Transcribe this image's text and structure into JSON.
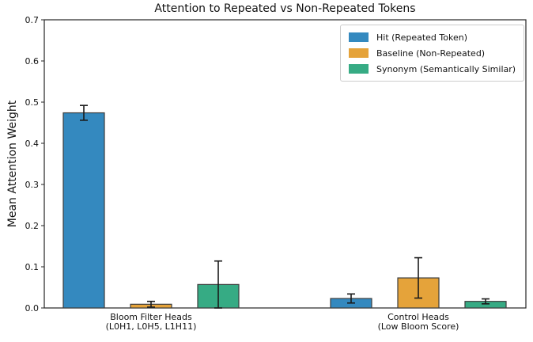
{
  "chart_data": {
    "type": "bar",
    "title": "Attention to Repeated vs Non-Repeated Tokens",
    "ylabel": "Mean Attention Weight",
    "xlabel": "",
    "ylim": [
      0,
      0.7
    ],
    "yticks": [
      0.0,
      0.1,
      0.2,
      0.3,
      0.4,
      0.5,
      0.6,
      0.7
    ],
    "grid": false,
    "legend_position": "upper right",
    "categories": [
      [
        "Bloom Filter Heads",
        "(L0H1, L0H5, L1H11)"
      ],
      [
        "Control Heads",
        "(Low Bloom Score)"
      ]
    ],
    "series": [
      {
        "name": "Hit (Repeated Token)",
        "color": "#3489bf",
        "values": [
          0.474,
          0.023
        ],
        "errors": [
          0.018,
          0.011
        ]
      },
      {
        "name": "Baseline (Non-Repeated)",
        "color": "#e5a33a",
        "values": [
          0.009,
          0.073
        ],
        "errors": [
          0.007,
          0.049
        ]
      },
      {
        "name": "Synonym (Semantically Similar)",
        "color": "#36ab84",
        "values": [
          0.057,
          0.016
        ],
        "errors": [
          0.057,
          0.006
        ]
      }
    ],
    "colors": {
      "bar_edge": "#3d3d3d",
      "spine": "#262626",
      "error_bar": "#1a1a1a",
      "background": "#ffffff"
    }
  }
}
